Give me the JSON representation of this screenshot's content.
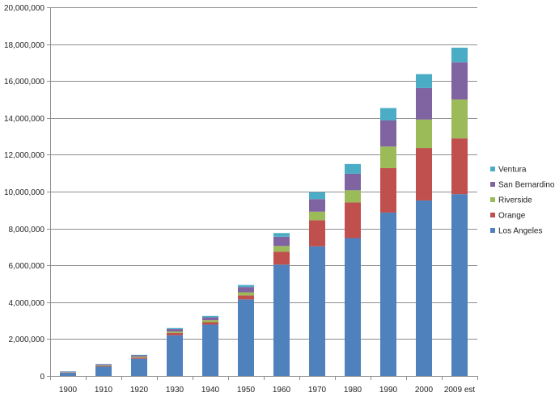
{
  "chart_data": {
    "type": "bar",
    "stacked": true,
    "categories": [
      "1900",
      "1910",
      "1920",
      "1930",
      "1940",
      "1950",
      "1960",
      "1970",
      "1980",
      "1990",
      "2000",
      "2009 est"
    ],
    "ylim": [
      0,
      20000000
    ],
    "yticks": [
      0,
      2000000,
      4000000,
      6000000,
      8000000,
      10000000,
      12000000,
      14000000,
      16000000,
      18000000,
      20000000
    ],
    "ytick_labels": [
      "0",
      "2,000,000",
      "4,000,000",
      "6,000,000",
      "8,000,000",
      "10,000,000",
      "12,000,000",
      "14,000,000",
      "16,000,000",
      "18,000,000",
      "20,000,000"
    ],
    "grid": true,
    "legend_position": "right",
    "series": [
      {
        "name": "Los Angeles",
        "color": "#4f81bd",
        "values": [
          170000,
          504000,
          936000,
          2208000,
          2786000,
          4152000,
          6039000,
          7032000,
          7478000,
          8863000,
          9519000,
          9862000
        ]
      },
      {
        "name": "Orange",
        "color": "#c0504d",
        "values": [
          20000,
          34000,
          61000,
          119000,
          131000,
          216000,
          704000,
          1420000,
          1932000,
          2411000,
          2846000,
          3026000
        ]
      },
      {
        "name": "Riverside",
        "color": "#9bbb59",
        "values": [
          18000,
          35000,
          50000,
          81000,
          106000,
          170000,
          306000,
          459000,
          663000,
          1170000,
          1545000,
          2108000
        ]
      },
      {
        "name": "San Bernardino",
        "color": "#8064a2",
        "values": [
          28000,
          57000,
          73000,
          134000,
          161000,
          282000,
          504000,
          684000,
          895000,
          1418000,
          1709000,
          2015000
        ]
      },
      {
        "name": "Ventura",
        "color": "#4bacc6",
        "values": [
          14000,
          18000,
          28000,
          55000,
          70000,
          115000,
          199000,
          376000,
          529000,
          669000,
          753000,
          798000
        ]
      }
    ]
  }
}
